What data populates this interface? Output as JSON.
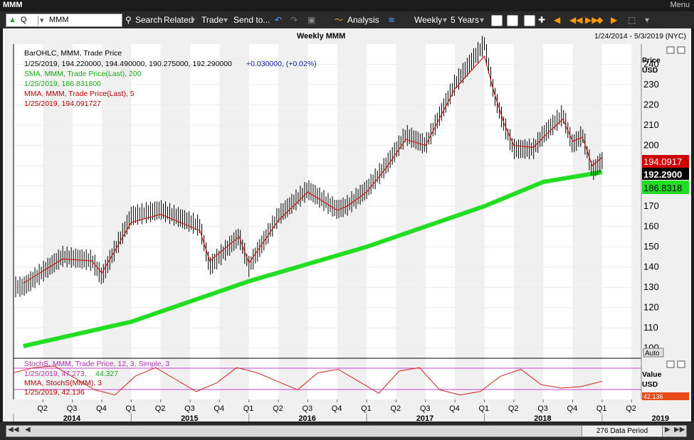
{
  "window": {
    "title": "MMM",
    "menu": "Menu"
  },
  "toolbar": {
    "symbol_prefix": "Q",
    "symbol": "MMM",
    "search": "Search",
    "related": "Related",
    "trade": "Trade",
    "send_to": "Send to...",
    "analysis": "Analysis",
    "interval": "Weekly",
    "range": "5 Years"
  },
  "chart_header": {
    "title": "Weekly MMM",
    "date_range": "1/24/2014 - 5/3/2019 (NYC)"
  },
  "legend": {
    "bar_title": "BarOHLC, MMM, Trade Price",
    "bar_values": "1/25/2019, 194.220000, 194.490000, 190.275000, 192.290000",
    "bar_change": "+0.030000, (+0.02%)",
    "sma_title": "SMA, MMM, Trade Price(Last), 200",
    "sma_value": "1/25/2019, 186.831800",
    "mma_title": "MMA, MMM, Trade Price(Last), 5",
    "mma_value": "1/25/2019, 194.091727",
    "stoch_title": "StochS, MMM, Trade Price, 12, 3, Simple, 3",
    "stoch_value_a": "1/25/2019, 47.273,",
    "stoch_value_b": "44.327",
    "stoch_mma_title": "MMA, StochS(MMM), 3",
    "stoch_mma_value": "1/25/2019, 42.136"
  },
  "axis": {
    "price_label_1": "Price",
    "price_label_2": "USD",
    "value_label_1": "Value",
    "value_label_2": "USD",
    "auto": "Auto",
    "tag_mma": "194.0917",
    "tag_last": "192.2900",
    "tag_sma": "186.8318",
    "tag_stoch": "42.136"
  },
  "footer": {
    "data_period": "276 Data Period"
  },
  "colors": {
    "mma": "#d00000",
    "sma": "#22dd22",
    "stoch": "#cc44cc",
    "last": "#000000"
  },
  "chart_data": {
    "type": "line",
    "title": "Weekly MMM",
    "ylabel": "Price USD",
    "ylim": [
      95,
      250
    ],
    "yticks": [
      100,
      110,
      120,
      130,
      140,
      150,
      160,
      170,
      180,
      190,
      200,
      210,
      220,
      230,
      240
    ],
    "quarters": [
      "Q2",
      "Q3",
      "Q4",
      "Q1",
      "Q2",
      "Q3",
      "Q4",
      "Q1",
      "Q2",
      "Q3",
      "Q4",
      "Q1",
      "Q2",
      "Q3",
      "Q4",
      "Q1",
      "Q2",
      "Q3",
      "Q4",
      "Q1",
      "Q2"
    ],
    "years": [
      "2014",
      "2015",
      "2016",
      "2017",
      "2018",
      "2019"
    ],
    "series": [
      {
        "name": "MMM",
        "x": [
          "2014-02",
          "2014-06",
          "2014-09",
          "2014-10",
          "2015-01",
          "2015-04",
          "2015-08",
          "2015-09",
          "2015-12",
          "2016-01",
          "2016-04",
          "2016-07",
          "2016-10",
          "2016-11",
          "2017-01",
          "2017-03",
          "2017-05",
          "2017-07",
          "2017-10",
          "2018-01",
          "2018-02",
          "2018-03",
          "2018-04",
          "2018-06",
          "2018-07",
          "2018-09",
          "2018-10",
          "2018-11",
          "2018-12",
          "2019-01"
        ],
        "values": [
          130,
          145,
          143,
          135,
          165,
          168,
          160,
          140,
          155,
          140,
          165,
          178,
          168,
          170,
          178,
          190,
          205,
          200,
          230,
          250,
          225,
          210,
          198,
          198,
          205,
          215,
          200,
          205,
          187,
          192.29
        ]
      },
      {
        "name": "SMA",
        "x": [
          "2014-02",
          "2015-01",
          "2016-01",
          "2017-01",
          "2018-01",
          "2018-07",
          "2019-01"
        ],
        "values": [
          101,
          113,
          133,
          150,
          170,
          182,
          186.83
        ]
      },
      {
        "name": "MMA",
        "x": [
          "2014-02",
          "2014-06",
          "2014-09",
          "2014-10",
          "2015-01",
          "2015-04",
          "2015-08",
          "2015-09",
          "2015-12",
          "2016-01",
          "2016-04",
          "2016-07",
          "2016-10",
          "2016-11",
          "2017-01",
          "2017-03",
          "2017-05",
          "2017-07",
          "2017-10",
          "2018-01",
          "2018-02",
          "2018-03",
          "2018-04",
          "2018-06",
          "2018-07",
          "2018-09",
          "2018-10",
          "2018-11",
          "2018-12",
          "2019-01"
        ],
        "values": [
          132,
          144,
          143,
          137,
          162,
          166,
          158,
          143,
          155,
          142,
          163,
          177,
          168,
          170,
          177,
          189,
          203,
          200,
          228,
          244,
          226,
          211,
          200,
          199,
          204,
          213,
          202,
          204,
          190,
          194.09
        ]
      }
    ],
    "stochastic": {
      "ylim": [
        0,
        100
      ],
      "values": [
        70,
        85,
        90,
        55,
        20,
        5,
        60,
        85,
        50,
        15,
        40,
        85,
        70,
        45,
        20,
        70,
        80,
        45,
        10,
        75,
        85,
        20,
        5,
        15,
        60,
        80,
        35,
        25,
        30,
        45
      ]
    }
  }
}
